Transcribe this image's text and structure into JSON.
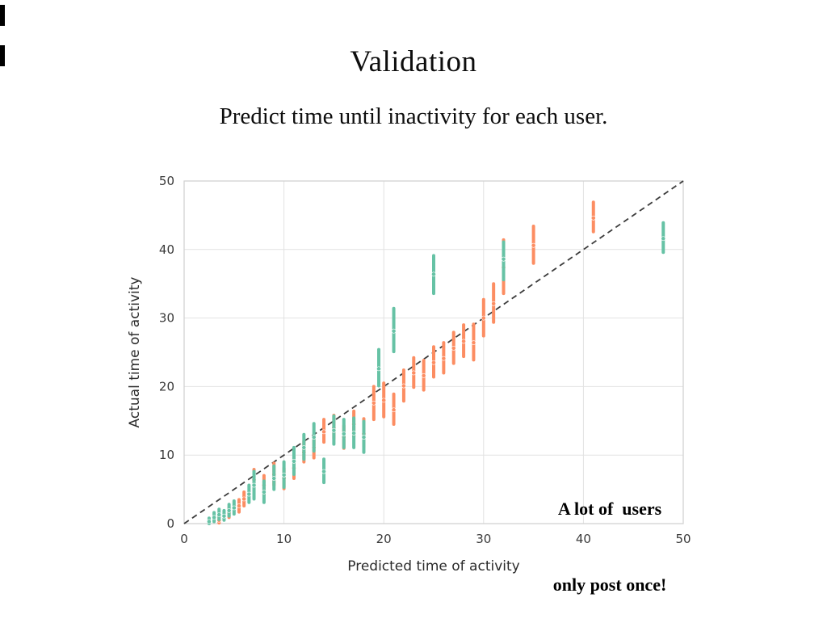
{
  "slide": {
    "title": "Validation",
    "subtitle": "Predict time until inactivity for each user.",
    "annotation": {
      "line1": "A lot of  users",
      "line2": "only post once!"
    }
  },
  "colors": {
    "orange_series": "#fc8d62",
    "teal_series": "#66c2a5",
    "grid": "#e2e2e2",
    "plot_border": "#cfcfcf",
    "identity_line": "#3c3c3c",
    "background": "#ffffff"
  },
  "chart_data": {
    "type": "scatter",
    "title": "",
    "xlabel": "Predicted time of activity",
    "ylabel": "Actual time of activity",
    "xlim": [
      0,
      50
    ],
    "ylim": [
      0,
      50
    ],
    "xticks": [
      0,
      10,
      20,
      30,
      40,
      50
    ],
    "yticks": [
      0,
      10,
      20,
      30,
      40,
      50
    ],
    "grid": true,
    "legend": "none",
    "reference_line": {
      "kind": "identity",
      "from": [
        0,
        0
      ],
      "to": [
        50,
        50
      ],
      "style": "dashed",
      "color": "#3c3c3c"
    },
    "point_format": [
      "x",
      "y",
      "y_low",
      "y_high"
    ],
    "series": [
      {
        "name": "orange",
        "color": "#fc8d62",
        "points": [
          [
            3.5,
            0.5,
            0.1,
            1.0
          ],
          [
            4.5,
            1.6,
            0.9,
            2.3
          ],
          [
            5.5,
            2.6,
            1.7,
            3.5
          ],
          [
            6.0,
            3.6,
            2.6,
            4.6
          ],
          [
            7.0,
            6.4,
            5.0,
            7.9
          ],
          [
            8.0,
            5.6,
            4.2,
            7.0
          ],
          [
            9.0,
            7.2,
            5.6,
            8.8
          ],
          [
            10.0,
            6.6,
            5.1,
            8.1
          ],
          [
            11.0,
            8.1,
            6.6,
            9.8
          ],
          [
            12.0,
            10.4,
            9.0,
            12.0
          ],
          [
            13.0,
            11.1,
            9.6,
            12.6
          ],
          [
            14.0,
            13.4,
            11.9,
            15.2
          ],
          [
            15.0,
            14.0,
            12.4,
            15.8
          ],
          [
            16.0,
            12.6,
            11.0,
            14.3
          ],
          [
            17.0,
            14.5,
            12.7,
            16.4
          ],
          [
            18.0,
            13.1,
            11.2,
            15.3
          ],
          [
            19.0,
            17.6,
            15.2,
            20.0
          ],
          [
            20.0,
            18.0,
            15.6,
            20.5
          ],
          [
            21.0,
            16.6,
            14.5,
            18.9
          ],
          [
            22.0,
            20.1,
            17.9,
            22.4
          ],
          [
            23.0,
            22.0,
            19.9,
            24.2
          ],
          [
            24.0,
            21.6,
            19.5,
            23.8
          ],
          [
            25.0,
            23.5,
            21.4,
            25.8
          ],
          [
            26.0,
            24.1,
            22.0,
            26.4
          ],
          [
            27.0,
            25.6,
            23.4,
            27.9
          ],
          [
            28.0,
            26.6,
            24.4,
            29.0
          ],
          [
            29.0,
            26.4,
            23.9,
            29.1
          ],
          [
            30.0,
            30.0,
            27.4,
            32.7
          ],
          [
            31.0,
            32.1,
            29.4,
            35.0
          ],
          [
            32.0,
            37.4,
            33.6,
            41.4
          ],
          [
            35.0,
            40.6,
            38.0,
            43.4
          ],
          [
            41.0,
            44.6,
            42.6,
            46.9
          ]
        ]
      },
      {
        "name": "teal",
        "color": "#66c2a5",
        "points": [
          [
            2.5,
            0.3,
            0.0,
            0.8
          ],
          [
            3.0,
            0.9,
            0.3,
            1.6
          ],
          [
            3.5,
            1.3,
            0.6,
            2.1
          ],
          [
            4.0,
            1.1,
            0.5,
            1.9
          ],
          [
            4.5,
            1.9,
            1.1,
            2.8
          ],
          [
            5.0,
            2.3,
            1.4,
            3.3
          ],
          [
            6.5,
            4.3,
            3.1,
            5.6
          ],
          [
            7.0,
            5.6,
            3.6,
            7.6
          ],
          [
            8.0,
            4.6,
            3.1,
            6.2
          ],
          [
            9.0,
            6.6,
            5.0,
            8.4
          ],
          [
            10.0,
            7.1,
            5.3,
            9.0
          ],
          [
            11.0,
            9.1,
            7.2,
            11.1
          ],
          [
            12.0,
            11.1,
            9.4,
            13.0
          ],
          [
            13.0,
            12.6,
            10.6,
            14.6
          ],
          [
            14.0,
            7.6,
            6.0,
            9.4
          ],
          [
            15.0,
            13.6,
            11.6,
            15.7
          ],
          [
            16.0,
            13.1,
            11.1,
            15.2
          ],
          [
            17.0,
            13.2,
            11.1,
            15.4
          ],
          [
            18.0,
            12.6,
            10.4,
            14.9
          ],
          [
            19.5,
            22.6,
            20.1,
            25.4
          ],
          [
            21.0,
            28.1,
            25.1,
            31.4
          ],
          [
            25.0,
            36.4,
            33.6,
            39.1
          ],
          [
            32.0,
            38.6,
            35.6,
            41.1
          ],
          [
            48.0,
            41.6,
            39.6,
            43.9
          ]
        ]
      }
    ]
  }
}
